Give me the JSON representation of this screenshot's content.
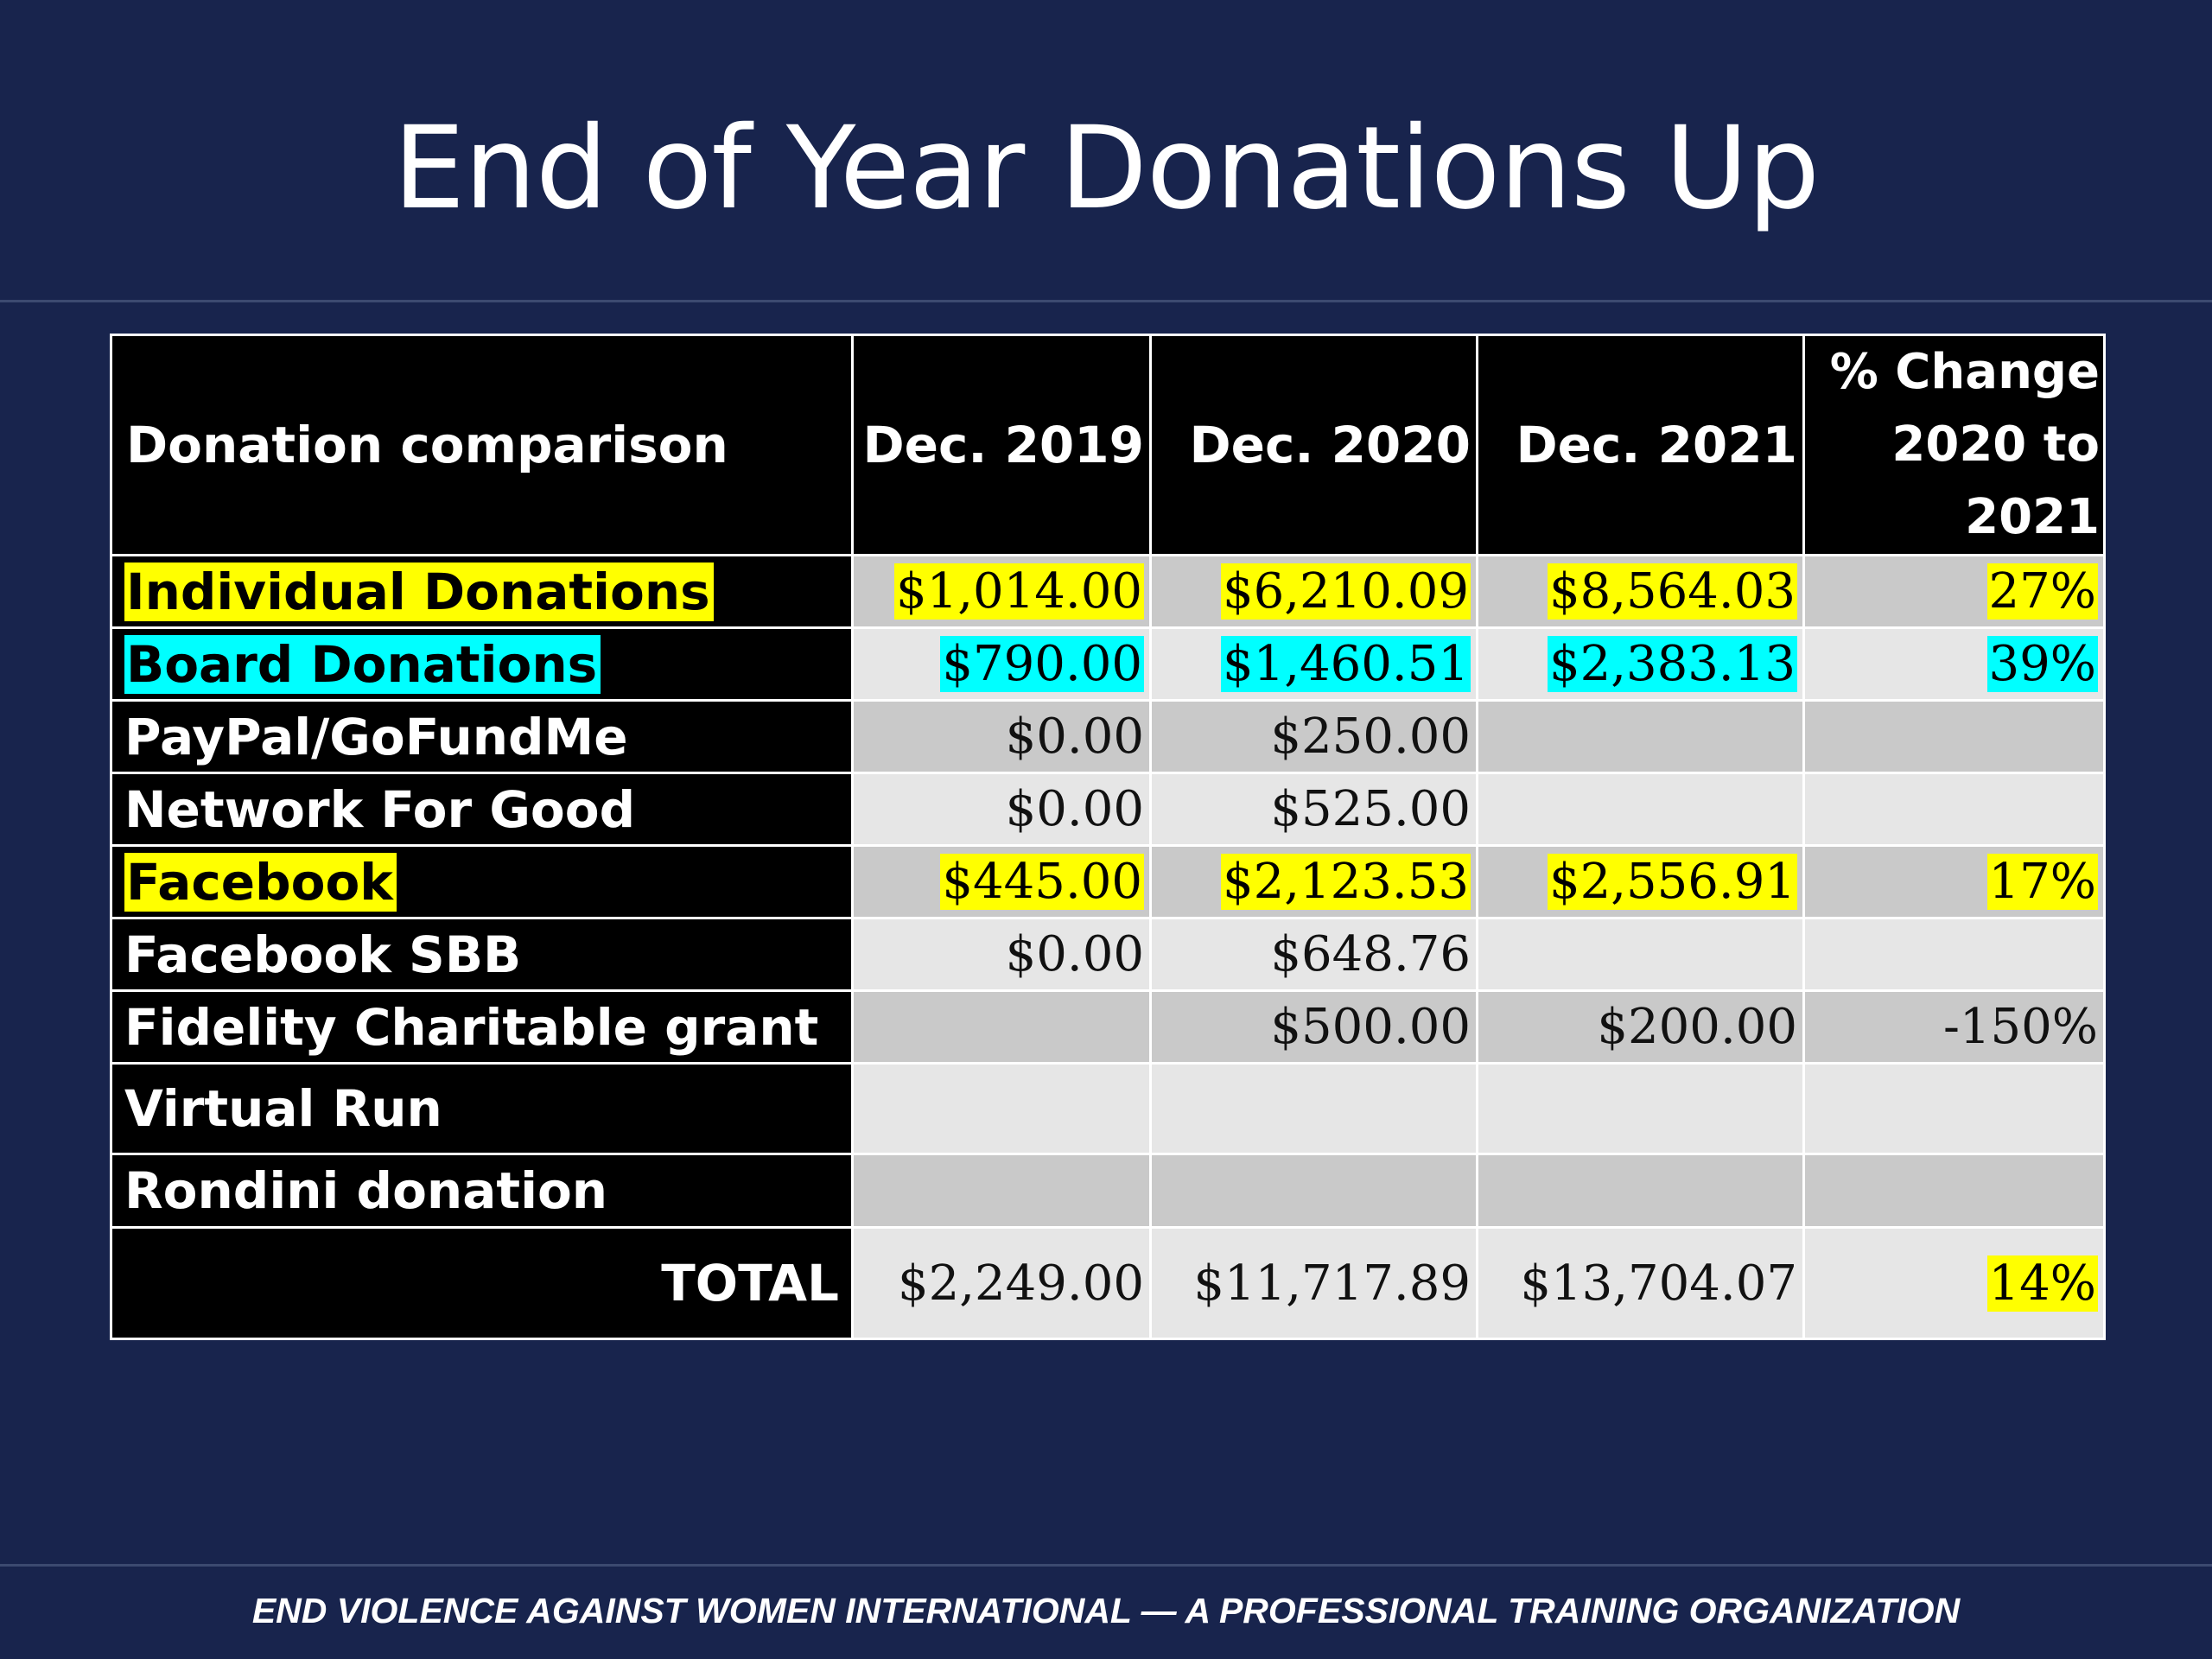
{
  "slide": {
    "title": "End of Year Donations Up",
    "footer": "END VIOLENCE AGAINST WOMEN INTERNATIONAL — A PROFESSIONAL TRAINING ORGANIZATION"
  },
  "colors": {
    "background": "#18244d",
    "header_bg": "#000000",
    "cell_dark": "#c9c9c9",
    "cell_light": "#e6e6e6",
    "highlight_yellow": "#ffff00",
    "highlight_cyan": "#00ffff"
  },
  "table": {
    "headers": {
      "label": "Donation comparison",
      "dec2019": "Dec. 2019",
      "dec2020": "Dec. 2020",
      "dec2021": "Dec. 2021",
      "pct_line1": "% Change",
      "pct_line2": "2020 to",
      "pct_line3": "2021"
    },
    "rows": [
      {
        "label": "Individual Donations",
        "dec2019": "$1,014.00",
        "dec2020": "$6,210.09",
        "dec2021": "$8,564.03",
        "pct": "27%",
        "highlight": "yellow"
      },
      {
        "label": "Board Donations",
        "dec2019": "$790.00",
        "dec2020": "$1,460.51",
        "dec2021": "$2,383.13",
        "pct": "39%",
        "highlight": "cyan"
      },
      {
        "label": "PayPal/GoFundMe",
        "dec2019": "$0.00",
        "dec2020": "$250.00",
        "dec2021": "",
        "pct": "",
        "highlight": "none"
      },
      {
        "label": "Network For Good",
        "dec2019": "$0.00",
        "dec2020": "$525.00",
        "dec2021": "",
        "pct": "",
        "highlight": "none"
      },
      {
        "label": "Facebook",
        "dec2019": "$445.00",
        "dec2020": "$2,123.53",
        "dec2021": "$2,556.91",
        "pct": "17%",
        "highlight": "yellow"
      },
      {
        "label": "Facebook SBB",
        "dec2019": "$0.00",
        "dec2020": "$648.76",
        "dec2021": "",
        "pct": "",
        "highlight": "none"
      },
      {
        "label": "Fidelity Charitable grant",
        "dec2019": "",
        "dec2020": "$500.00",
        "dec2021": "$200.00",
        "pct": "-150%",
        "highlight": "none"
      },
      {
        "label": "Virtual Run",
        "dec2019": "",
        "dec2020": "",
        "dec2021": "",
        "pct": "",
        "highlight": "none"
      },
      {
        "label": "Rondini donation",
        "dec2019": "",
        "dec2020": "",
        "dec2021": "",
        "pct": "",
        "highlight": "none"
      }
    ],
    "total": {
      "label": "TOTAL",
      "dec2019": "$2,249.00",
      "dec2020": "$11,717.89",
      "dec2021": "$13,704.07",
      "pct": "14%"
    }
  }
}
